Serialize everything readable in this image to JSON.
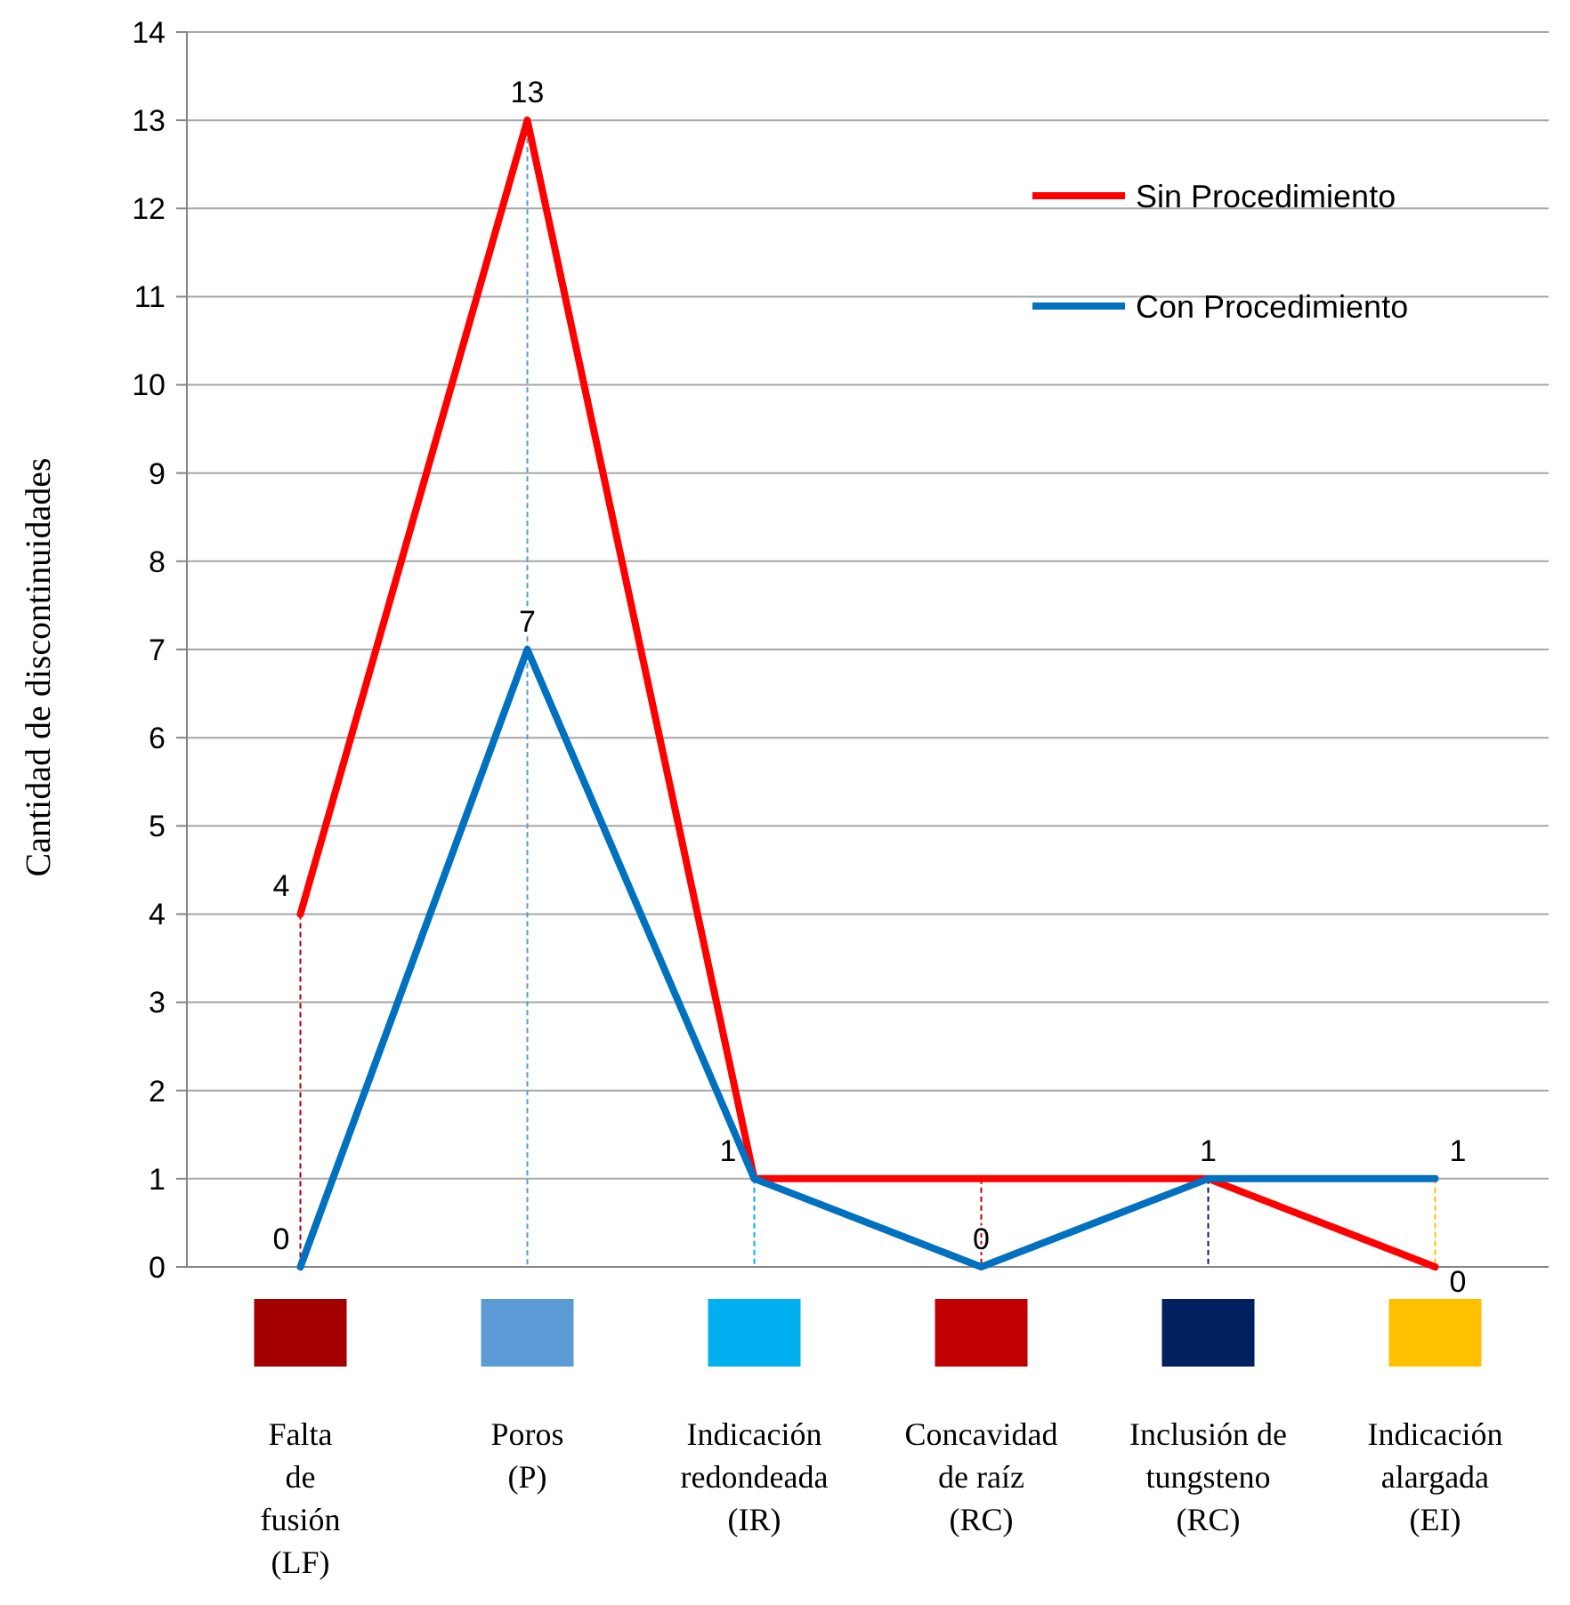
{
  "chart_data": {
    "type": "line",
    "ylabel": "Cantidad de discontinuidades",
    "categories": [
      "Falta\nde\nfusión\n(LF)",
      "Poros\n(P)",
      "Indicación\nredondeada\n(IR)",
      "Concavidad\nde raíz\n(RC)",
      "Inclusión de\ntungsteno\n(RC)",
      "Indicación\nalargada\n(EI)"
    ],
    "colors": [
      "#a50000",
      "#5b9bd5",
      "#00b0f0",
      "#c00000",
      "#002060",
      "#ffc000"
    ],
    "series": [
      {
        "name": "Sin Procedimiento",
        "color": "#ff0000",
        "values": [
          4,
          13,
          1,
          1,
          1,
          0
        ],
        "value_labels": [
          "4",
          "13",
          null,
          null,
          "1",
          "0"
        ]
      },
      {
        "name": "Con Procedimiento",
        "color": "#0070c0",
        "values": [
          0,
          7,
          1,
          0,
          1,
          1
        ],
        "value_labels": [
          "0",
          "7",
          "1",
          "0",
          null,
          "1"
        ]
      }
    ],
    "ref_lines": [
      {
        "axis": "x",
        "value": "Falta\nde\nfusión\n(LF)",
        "color": "#a50000",
        "line_style": "dashed"
      },
      {
        "axis": "x",
        "value": "Poros\n(P)",
        "color": "#5b9bd5",
        "line_style": "dashed"
      }
    ],
    "ylim": [
      0,
      14
    ],
    "yticks": [
      0,
      1,
      2,
      3,
      4,
      5,
      6,
      7,
      8,
      9,
      10,
      11,
      12,
      13,
      14
    ],
    "grid": "y",
    "legend": "top right",
    "marker": "none",
    "line_style": "solid"
  }
}
